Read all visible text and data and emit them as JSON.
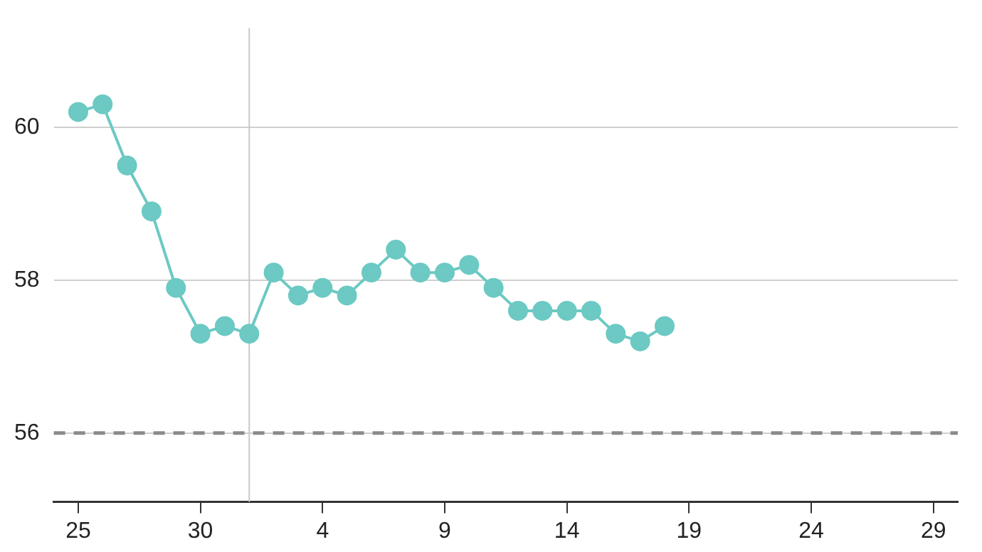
{
  "chart_data": {
    "type": "line",
    "x": [
      "--10-25",
      "--10-26",
      "--10-27",
      "--10-28",
      "--10-29",
      "--10-30",
      "--10-31",
      "--11-01",
      "--11-02",
      "--11-03",
      "--11-04",
      "--11-05",
      "--11-06",
      "--11-07",
      "--11-08",
      "--11-09",
      "--11-10",
      "--11-11",
      "--11-12",
      "--11-13",
      "--11-14",
      "--11-15",
      "--11-16",
      "--11-17",
      "--11-18"
    ],
    "series": [
      {
        "color": "#6cc9c3",
        "values": [
          60.2,
          60.3,
          59.5,
          58.9,
          57.9,
          57.3,
          57.4,
          57.3,
          58.1,
          57.8,
          57.9,
          57.8,
          58.1,
          58.4,
          58.1,
          58.1,
          58.2,
          57.9,
          57.6,
          57.6,
          57.6,
          57.6,
          57.3,
          57.2,
          57.4
        ]
      }
    ],
    "xlim": [
      "--10-24",
      "--11-30"
    ],
    "xticks": [
      {
        "value": "--10-25",
        "label": "25"
      },
      {
        "value": "--10-30",
        "label": "30"
      },
      {
        "value": "--11-04",
        "label": "4"
      },
      {
        "value": "--11-09",
        "label": "9"
      },
      {
        "value": "--11-14",
        "label": "14"
      },
      {
        "value": "--11-19",
        "label": "19"
      },
      {
        "value": "--11-24",
        "label": "24"
      },
      {
        "value": "--11-29",
        "label": "29"
      }
    ],
    "ylim": [
      55.1,
      61.3
    ],
    "yticks": [
      56,
      58,
      60
    ],
    "grid": "y",
    "marker": "circle",
    "line_style": "solid",
    "legend": false,
    "ref_lines": [
      {
        "axis": "y",
        "value": 56,
        "color": "#8a8a8a",
        "line_style": "dashed"
      },
      {
        "axis": "x",
        "value": "--11-01",
        "color": "#c8c8c8",
        "line_style": "solid"
      }
    ]
  }
}
